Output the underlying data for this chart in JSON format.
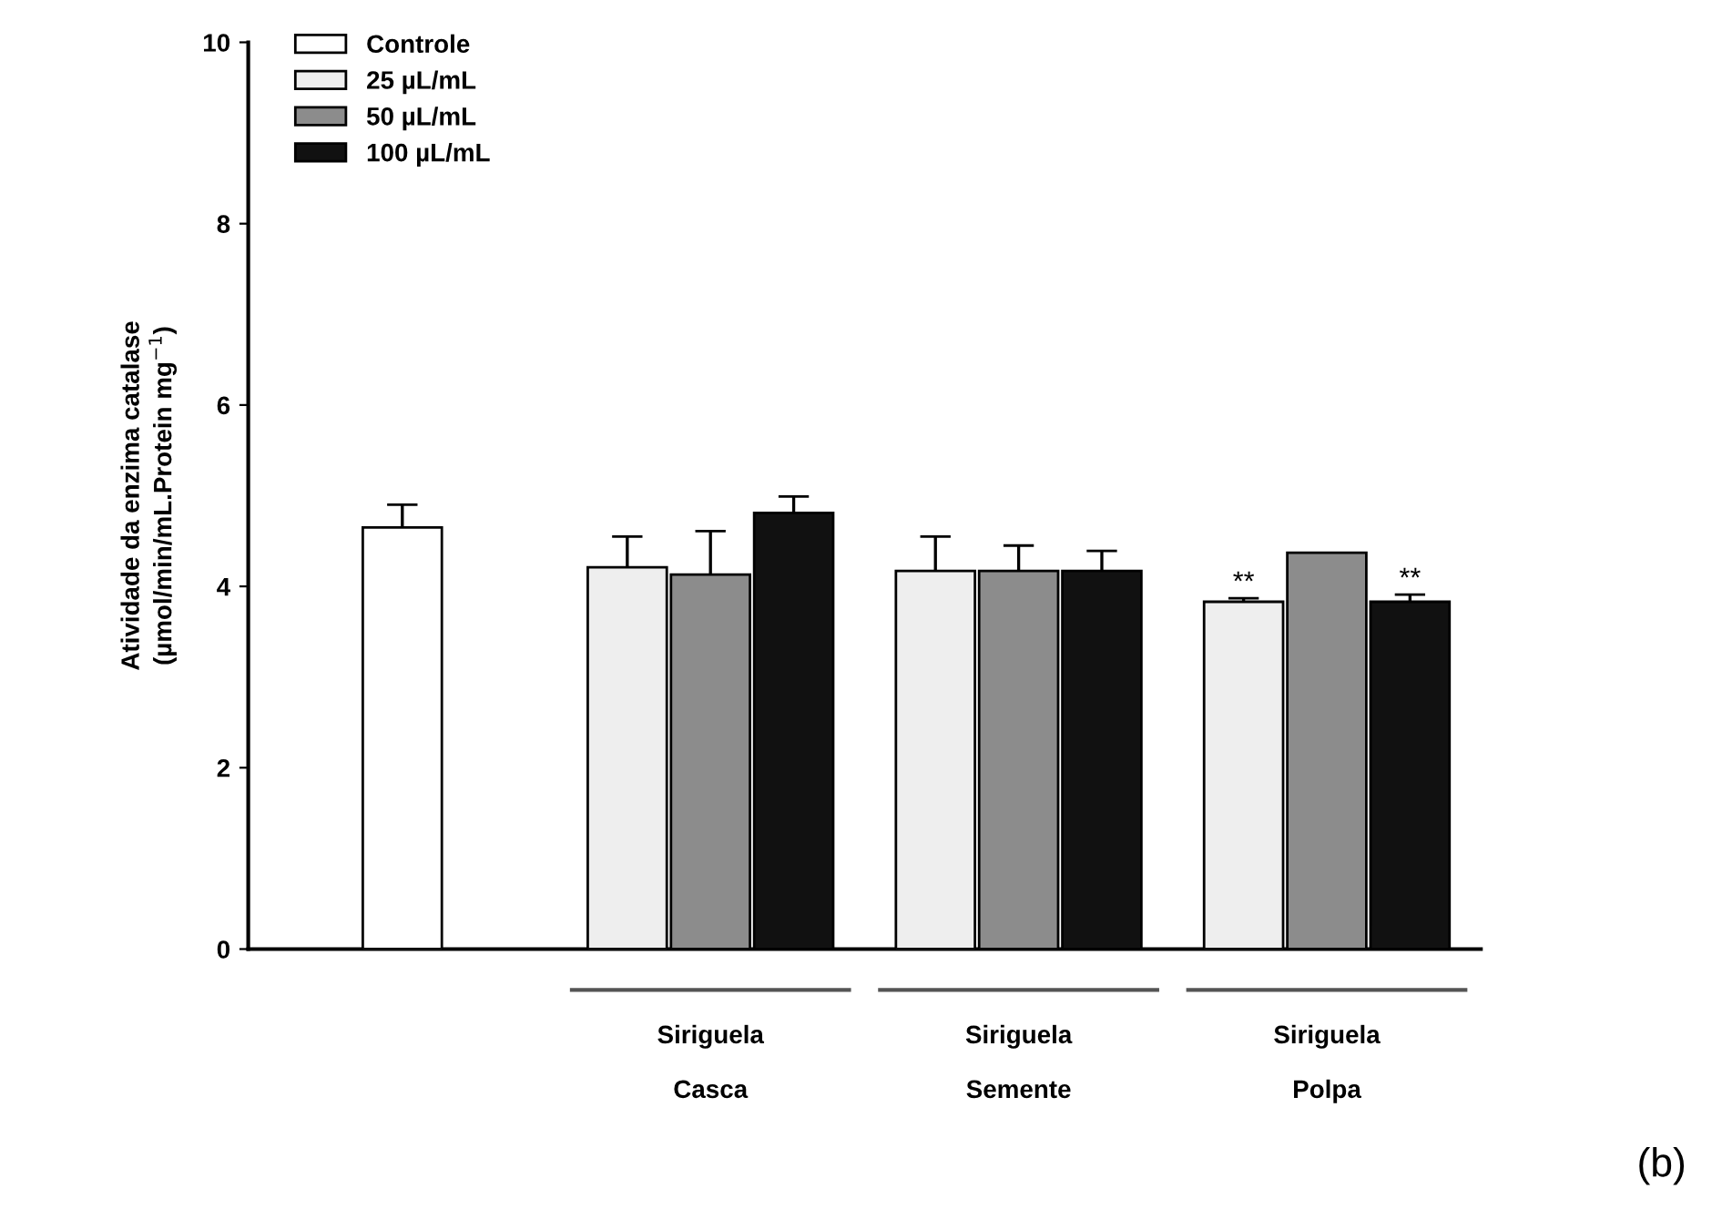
{
  "chart_data": {
    "type": "bar",
    "ylabel": "Atividade da enzima catalase\n(µmol/min/mL.Protein mg$^{−1}$)",
    "categories": [
      null,
      "Siriguela\n\nCasca",
      "Siriguela\n\nSemente",
      "Siriguela\n\nPolpa"
    ],
    "series": [
      {
        "name": "Controle",
        "color": "#ffffff",
        "values": [
          4.65,
          null,
          null,
          null
        ],
        "errors": [
          0.25,
          null,
          null,
          null
        ]
      },
      {
        "name": "25 µL/mL",
        "color": "#eeeeee",
        "values": [
          null,
          4.21,
          4.17,
          3.83
        ],
        "errors": [
          null,
          0.34,
          0.38,
          0.04
        ]
      },
      {
        "name": "50 µL/mL",
        "color": "#8c8c8c",
        "values": [
          null,
          4.13,
          4.17,
          4.37
        ],
        "errors": [
          null,
          0.48,
          0.28,
          null
        ]
      },
      {
        "name": "100 µL/mL",
        "color": "#111111",
        "values": [
          null,
          4.81,
          4.17,
          3.83
        ],
        "errors": [
          null,
          0.18,
          0.22,
          0.08
        ]
      }
    ],
    "ylim": [
      0,
      10
    ],
    "yticks": [
      0,
      2,
      4,
      6,
      8,
      10
    ],
    "grid": false,
    "legend": "top left",
    "annotations": [
      "**",
      "**",
      "(b)"
    ]
  }
}
